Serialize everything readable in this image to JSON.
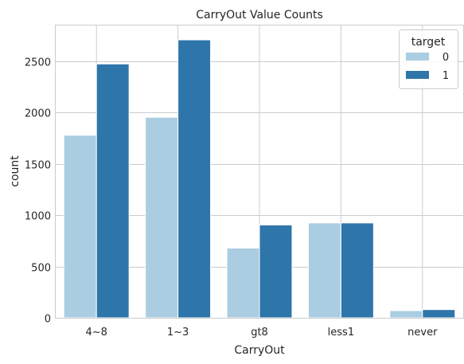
{
  "chart_data": {
    "type": "bar",
    "title": "CarryOut Value Counts",
    "xlabel": "CarryOut",
    "ylabel": "count",
    "categories": [
      "4~8",
      "1~3",
      "gt8",
      "less1",
      "never"
    ],
    "series": [
      {
        "name": "0",
        "values": [
          1780,
          1955,
          680,
          925,
          70
        ],
        "color": "#abcde2"
      },
      {
        "name": "1",
        "values": [
          2475,
          2710,
          905,
          925,
          80
        ],
        "color": "#2e75aa"
      }
    ],
    "ylim": [
      0,
      2850
    ],
    "yticks": [
      0,
      500,
      1000,
      1500,
      2000,
      2500
    ],
    "grid": true,
    "legend": {
      "title": "target",
      "placement": "top-right"
    }
  }
}
